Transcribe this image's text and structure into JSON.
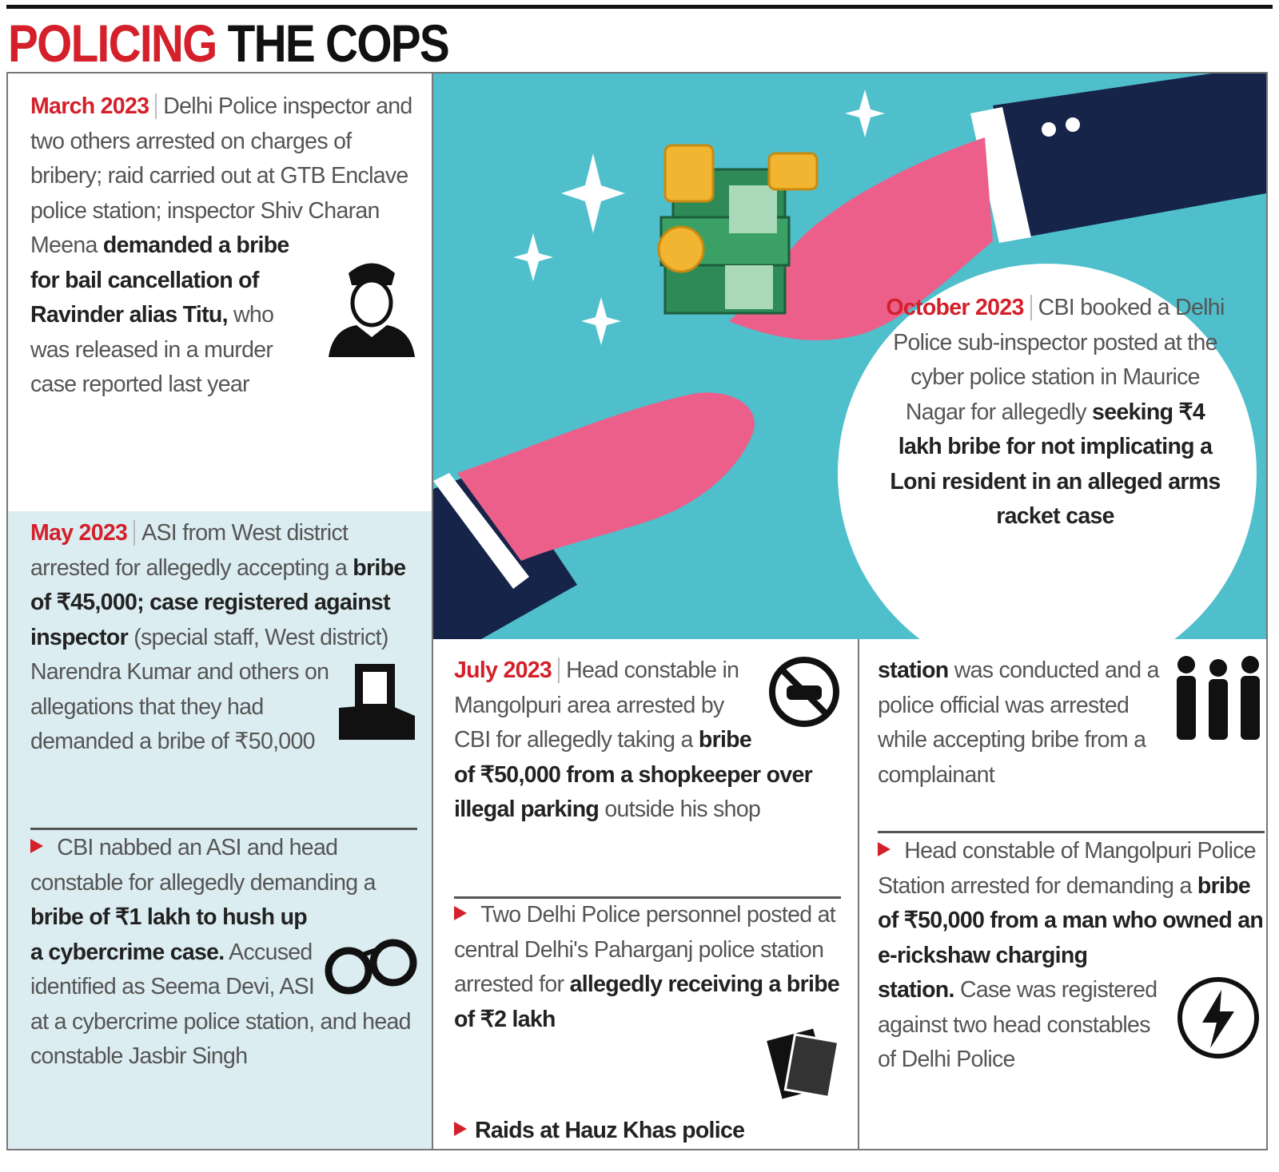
{
  "title": {
    "red": "POLICING",
    "black": "THE COPS"
  },
  "entries": [
    {
      "date": "March 2023",
      "body": [
        {
          "plain": "Delhi Police inspector and two others arrested on charges of bribery; raid carried out at GTB Enclave police station; inspector Shiv Charan Meena"
        },
        {
          "bold": "demanded a bribe for bail cancellation of Ravinder alias Titu,"
        },
        {
          "plain": "who was released in a murder case reported last year"
        }
      ]
    },
    {
      "date": "May 2023",
      "body": [
        {
          "plain": "ASI from West district arrested for allegedly accepting a"
        },
        {
          "bold": "bribe of ₹45,000; case registered against inspector"
        },
        {
          "plain": "(special staff, West district) Narendra Kumar and others on allegations that they had demanded a bribe of ₹50,000"
        }
      ]
    },
    {
      "body": [
        {
          "plain": "CBI nabbed an ASI and head constable for allegedly demanding a"
        },
        {
          "bold": "bribe of ₹1 lakh to hush up a cybercrime case."
        },
        {
          "plain": "Accused identified as Seema Devi, ASI at a cybercrime police station, and head constable Jasbir Singh"
        }
      ]
    },
    {
      "date": "July 2023",
      "body": [
        {
          "plain": "Head constable in Mangolpuri area arrested by CBI for allegedly taking a"
        },
        {
          "bold": "bribe of ₹50,000 from a shopkeeper over illegal parking"
        },
        {
          "plain": "outside his shop"
        }
      ]
    },
    {
      "body": [
        {
          "plain": "Two Delhi Police personnel posted at central Delhi's Paharganj police station arrested for"
        },
        {
          "bold": "allegedly receiving a bribe of ₹2 lakh"
        }
      ]
    },
    {
      "body": [
        {
          "bold": "Raids at Hauz Khas police"
        }
      ]
    },
    {
      "body": [
        {
          "bold": "station"
        },
        {
          "plain": "was conducted and a police official was arrested while accepting bribe from a complainant"
        }
      ]
    },
    {
      "body": [
        {
          "plain": "Head constable of Mangolpuri Police Station arrested for demanding a"
        },
        {
          "bold": "bribe of ₹50,000 from a man who owned an e-rickshaw charging station."
        },
        {
          "plain": "Case was registered against two head constables of Delhi Police"
        }
      ]
    },
    {
      "date": "October 2023",
      "body": [
        {
          "plain": "CBI booked a Delhi Police sub-inspector posted at the cyber police station in Maurice Nagar for allegedly"
        },
        {
          "bold": "seeking ₹4 lakh bribe for not implicating a Loni resident in an alleged arms racket case"
        }
      ]
    }
  ]
}
